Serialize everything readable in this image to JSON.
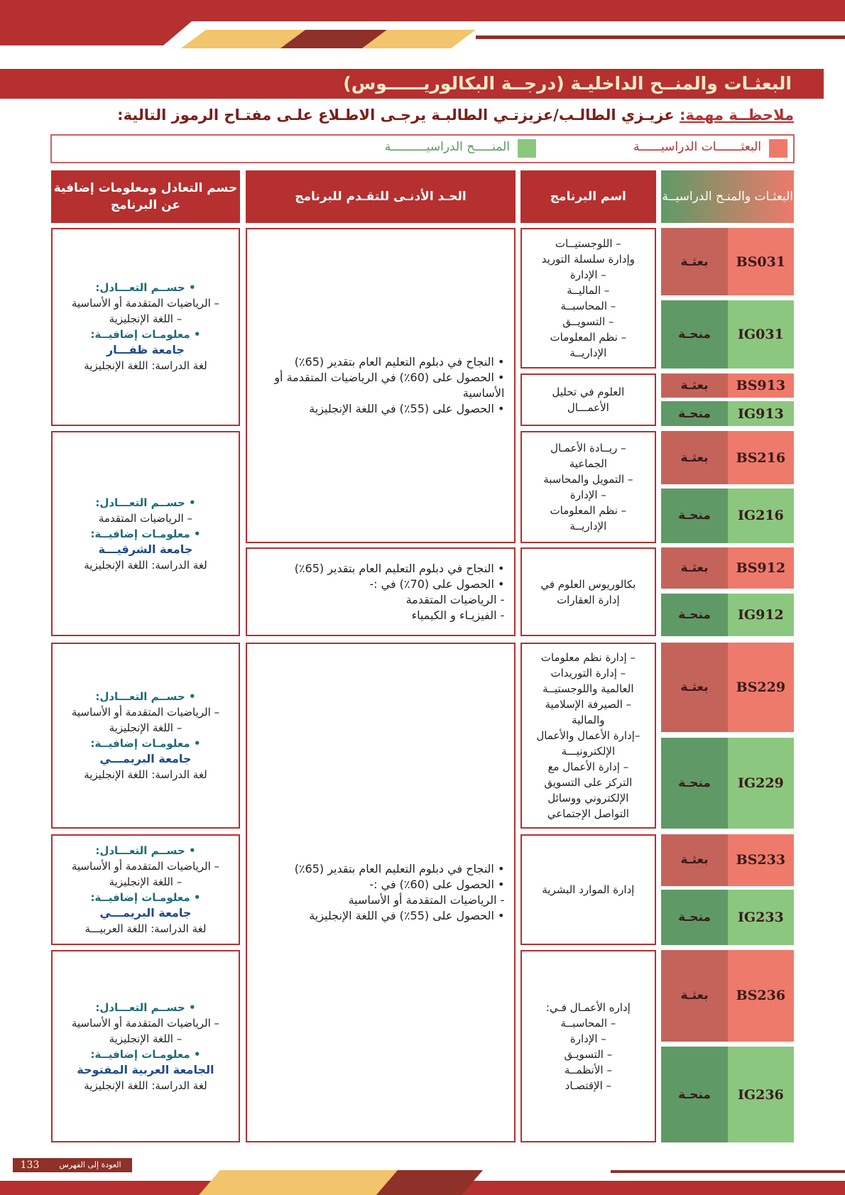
{
  "header": {
    "title": "البعثـات والمنــح الداخليـة (درجــة البكالوريــــــوس)"
  },
  "note": {
    "label": "ملاحظــة مهمة:",
    "text": "عزيـزي الطالـب/عزيزتـي الطالبـة يرجـى الاطـلاع علـى مفتـاح الرموز التالية:"
  },
  "legend": {
    "items": [
      {
        "label": "البعثـــــــات الدراسيــــــة"
      },
      {
        "label": "المنـــــح الدراسيــــــــــة"
      }
    ]
  },
  "table": {
    "headers": [
      "البعثـات والمنـح الدراسيــة",
      "اسم البرنامج",
      "الحـد الأدنـى للتقـدم للبرنامج",
      "حسم التعادل ومعلومات إضافية عن البرنامج"
    ],
    "codes": [
      {
        "code": "BS031",
        "type": "بعثـة"
      },
      {
        "code": "IG031",
        "type": "منحـة"
      },
      {
        "code": "BS913",
        "type": "بعثـة"
      },
      {
        "code": "IG913",
        "type": "منحـة"
      },
      {
        "code": "BS216",
        "type": "بعثـة"
      },
      {
        "code": "IG216",
        "type": "منحـة"
      },
      {
        "code": "BS912",
        "type": "بعثـة"
      },
      {
        "code": "IG912",
        "type": "منحـة"
      },
      {
        "code": "BS229",
        "type": "بعثـة"
      },
      {
        "code": "IG229",
        "type": "منحـة"
      },
      {
        "code": "BS233",
        "type": "بعثـة"
      },
      {
        "code": "IG233",
        "type": "منحـة"
      },
      {
        "code": "BS236",
        "type": "بعثـة"
      },
      {
        "code": "IG236",
        "type": "منحـة"
      }
    ],
    "programs": [
      [
        "– اللوجستيــات",
        "وإدارة سلسلة التوريد",
        "– الإدارة",
        "– الماليــة",
        "– المحاسبــة",
        "– التسويــق",
        "– نظم المعلومات",
        "الإداريــة"
      ],
      [
        "العلوم في تحليل",
        "الأعمـــال"
      ],
      [
        "– ريــادة الأعمـال",
        "الجماعية",
        "– التمويل والمحاسبة",
        "– الإدارة",
        "– نظم المعلومات",
        "الإداريــة"
      ],
      [
        "بكالوريوس العلوم في",
        "إدارة العقارات"
      ],
      [
        "– إدارة نظم معلومات",
        "– إدارة التوريدات",
        "العالمية واللوجستيــة",
        "– الصيرفة الإسلامية",
        "والمالية",
        "–إدارة الأعمال والأعمال",
        "الإلكترونيـــة",
        "– إدارة الأعمال مع",
        "التركز على التسويق",
        "الإلكتروني ووسائل",
        "التواصل الإجتماعي"
      ],
      [
        "إدارة الموارد البشرية"
      ],
      [
        "إداره الأعمـال فـي:",
        "– المحاسبــة",
        "– الإدارة",
        "– التسويـق",
        "– الأنظمــة",
        "– الإقتصـاد"
      ]
    ],
    "requirements": [
      [
        "• النجاح في دبلوم التعليم العام بتقدير (65٪)",
        "• الحصول على (60٪) في الرياضيات المتقدمة أو",
        "الأساسية",
        "• الحصول على (55٪) في اللغة الإنجليزية"
      ],
      [
        "• النجاح في دبلوم التعليم العام بتقدير (65٪)",
        "• الحصول على (70٪) في :-",
        "- الرياضيات المتقدمة",
        "- الفيزيـاء و الكيمياء"
      ],
      [
        "• النجاح في دبلوم التعليم العام بتقدير (65٪)",
        "• الحصول على (60٪) في :-",
        "- الرياضيات المتقدمة أو الأساسية",
        "• الحصول على (55٪) في اللغة الإنجليزية"
      ]
    ],
    "info": [
      {
        "equivalency_label": "• حســم التعـــادل:",
        "equivalency_lines": [
          "– الرياضيات المتقدمة أو الأساسية",
          "– اللغة الإنجليزية"
        ],
        "additional_label": "• معلومـات إضافيــة:",
        "university": "جامعة ظفـــار",
        "language": "لغة الدراسة: اللغة الإنجليزية"
      },
      {
        "equivalency_label": "• حســم التعـــادل:",
        "equivalency_lines": [
          "– الرياضيات المتقدمة"
        ],
        "additional_label": "• معلومـات إضافيــة:",
        "university": "جامعة الشرقيـــة",
        "language": "لغة الدراسة: اللغة الإنجليزية"
      },
      {
        "equivalency_label": "• حســم التعـــادل:",
        "equivalency_lines": [
          "– الرياضيات المتقدمة أو الأساسية",
          "– اللغة الإنجليزية"
        ],
        "additional_label": "• معلومـات إضافيــة:",
        "university": "جامعة البريمـــي",
        "language": "لغة الدراسة: اللغة الإنجليزية"
      },
      {
        "equivalency_label": "• حســم التعـــادل:",
        "equivalency_lines": [
          "– الرياضيات المتقدمة أو الأساسية",
          "– اللغة الإنجليزية"
        ],
        "additional_label": "• معلومـات إضافيــة:",
        "university": "جامعة البريمـــي",
        "language": "لغة الدراسة: اللغة العربيـــة"
      },
      {
        "equivalency_label": "• حســم التعـــادل:",
        "equivalency_lines": [
          "– الرياضيات المتقدمة أو الأساسية",
          "– اللغة الإنجليزية"
        ],
        "additional_label": "• معلومـات إضافيــة:",
        "university": "الجامعة العربية المفتوحة",
        "language": "لغة الدراسة: اللغة الإنجليزية"
      }
    ]
  },
  "footer": {
    "back": "العودة إلى الفهرس",
    "page": "133"
  }
}
